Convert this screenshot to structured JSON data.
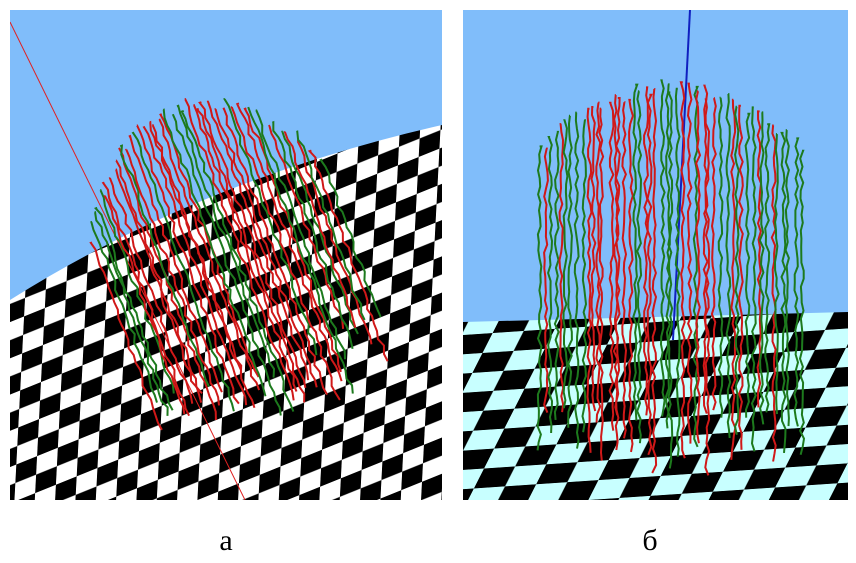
{
  "panels": [
    {
      "label": "а"
    },
    {
      "label": "б"
    }
  ]
}
